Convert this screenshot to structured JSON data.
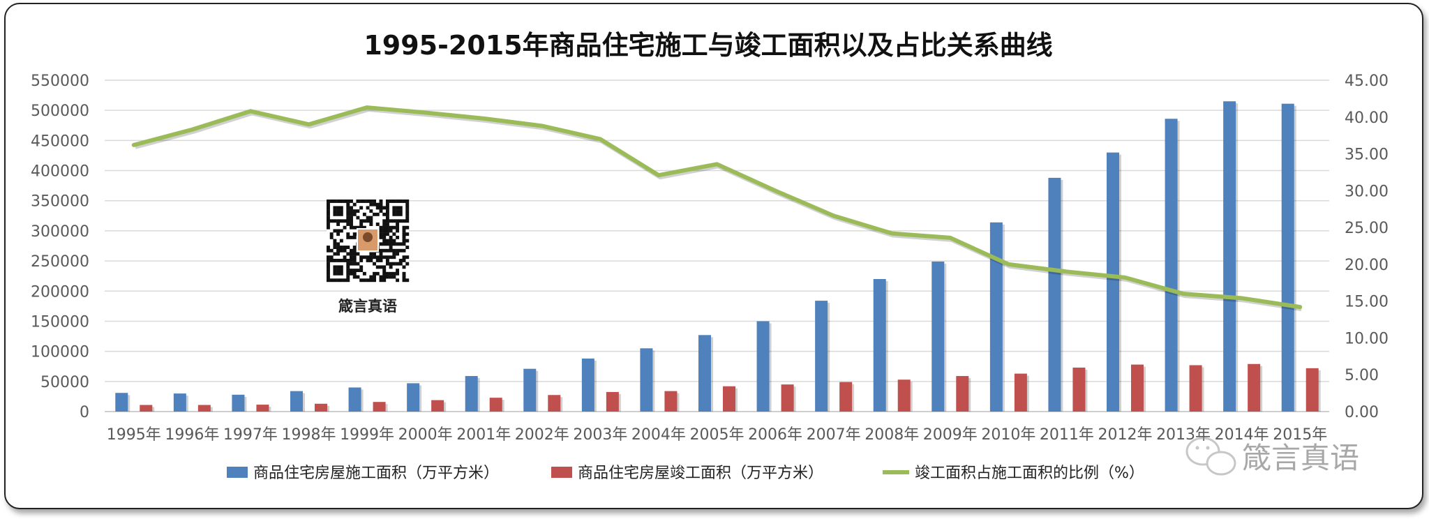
{
  "chart_data": {
    "type": "bar",
    "title": "1995-2015年商品住宅施工与竣工面积以及占比关系曲线",
    "categories": [
      "1995年",
      "1996年",
      "1997年",
      "1998年",
      "1999年",
      "2000年",
      "2001年",
      "2002年",
      "2003年",
      "2004年",
      "2005年",
      "2006年",
      "2007年",
      "2008年",
      "2009年",
      "2010年",
      "2011年",
      "2012年",
      "2013年",
      "2014年",
      "2015年"
    ],
    "series": [
      {
        "name": "商品住宅房屋施工面积（万平方米）",
        "type": "bar",
        "axis": "left",
        "color": "#4f81bd",
        "values": [
          31000,
          30000,
          28000,
          34000,
          40000,
          47000,
          59000,
          71000,
          88000,
          105000,
          127000,
          150000,
          184000,
          220000,
          249000,
          314000,
          388000,
          430000,
          486000,
          515000,
          511000
        ]
      },
      {
        "name": "商品住宅房屋竣工面积（万平方米）",
        "type": "bar",
        "axis": "left",
        "color": "#c0504d",
        "values": [
          11000,
          11000,
          11500,
          13000,
          16000,
          19000,
          23000,
          27500,
          32500,
          34000,
          42000,
          45000,
          49000,
          53000,
          59000,
          63000,
          73000,
          78000,
          77000,
          79000,
          72000
        ]
      },
      {
        "name": "竣工面积占施工面积的比例（%）",
        "type": "line",
        "axis": "right",
        "color": "#9bbb59",
        "values": [
          36.2,
          38.3,
          40.8,
          39.0,
          41.3,
          40.6,
          39.8,
          38.8,
          37.0,
          32.1,
          33.6,
          30.0,
          26.6,
          24.2,
          23.6,
          20.0,
          19.0,
          18.2,
          16.0,
          15.4,
          14.2
        ]
      }
    ],
    "y_left": {
      "min": 0,
      "max": 550000,
      "ticks": [
        "0",
        "50000",
        "100000",
        "150000",
        "200000",
        "250000",
        "300000",
        "350000",
        "400000",
        "450000",
        "500000",
        "550000"
      ]
    },
    "y_right": {
      "min": 0,
      "max": 45,
      "ticks": [
        "0.00",
        "5.00",
        "10.00",
        "15.00",
        "20.00",
        "25.00",
        "30.00",
        "35.00",
        "40.00",
        "45.00"
      ]
    },
    "grid": true,
    "legend_position": "bottom"
  },
  "qr_label": "箴言真语",
  "watermark": "箴言真语"
}
